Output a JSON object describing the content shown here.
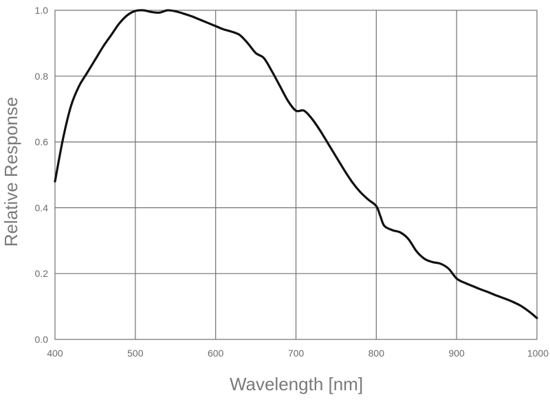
{
  "chart_data": {
    "type": "line",
    "title": "",
    "xlabel": "Wavelength [nm]",
    "ylabel": "Relative Response",
    "xlim": [
      400,
      1000
    ],
    "ylim": [
      0.0,
      1.0
    ],
    "x_ticks": [
      400,
      500,
      600,
      700,
      800,
      900,
      1000
    ],
    "y_ticks": [
      "0.0",
      "0.2",
      "0.4",
      "0.6",
      "0.8",
      "1.0"
    ],
    "grid": true,
    "series": [
      {
        "color": "#111111",
        "x": [
          400,
          410,
          420,
          430,
          440,
          450,
          460,
          470,
          480,
          490,
          500,
          510,
          520,
          530,
          540,
          550,
          560,
          570,
          580,
          590,
          600,
          610,
          620,
          630,
          640,
          650,
          660,
          670,
          680,
          690,
          700,
          710,
          720,
          730,
          740,
          750,
          760,
          770,
          780,
          790,
          800,
          805,
          810,
          820,
          830,
          840,
          850,
          860,
          870,
          880,
          890,
          900,
          910,
          920,
          930,
          940,
          950,
          960,
          970,
          980,
          990,
          1000
        ],
        "y": [
          0.48,
          0.61,
          0.71,
          0.77,
          0.81,
          0.85,
          0.89,
          0.925,
          0.96,
          0.985,
          0.998,
          1.0,
          0.995,
          0.993,
          1.0,
          0.997,
          0.99,
          0.982,
          0.972,
          0.962,
          0.952,
          0.942,
          0.935,
          0.925,
          0.9,
          0.87,
          0.855,
          0.815,
          0.77,
          0.725,
          0.695,
          0.695,
          0.67,
          0.635,
          0.595,
          0.555,
          0.515,
          0.478,
          0.448,
          0.425,
          0.405,
          0.375,
          0.345,
          0.332,
          0.325,
          0.305,
          0.268,
          0.245,
          0.235,
          0.23,
          0.215,
          0.185,
          0.172,
          0.162,
          0.152,
          0.143,
          0.133,
          0.124,
          0.114,
          0.102,
          0.085,
          0.065
        ]
      }
    ]
  }
}
